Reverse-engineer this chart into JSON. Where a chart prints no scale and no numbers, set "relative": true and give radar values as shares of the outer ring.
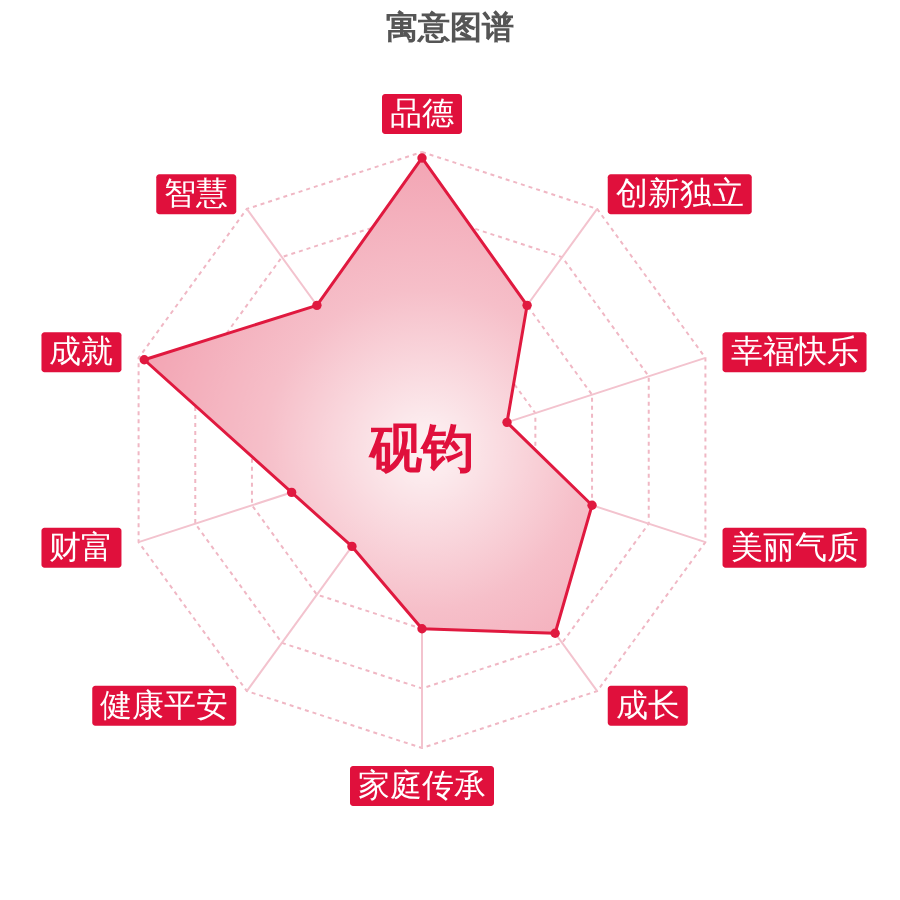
{
  "chart_data": {
    "type": "radar",
    "title": "寓意图谱",
    "categories": [
      "品德",
      "创新独立",
      "幸福快乐",
      "美丽气质",
      "成长",
      "家庭传承",
      "健康平安",
      "财富",
      "成就",
      "智慧"
    ],
    "relative": true,
    "series": [
      {
        "color": "#e0193f",
        "values": [
          0.98,
          0.6,
          0.3,
          0.6,
          0.76,
          0.6,
          0.4,
          0.46,
          0.98,
          0.6
        ]
      }
    ],
    "grid": true,
    "marker": "circle",
    "annotations": [
      "砚钧"
    ]
  }
}
